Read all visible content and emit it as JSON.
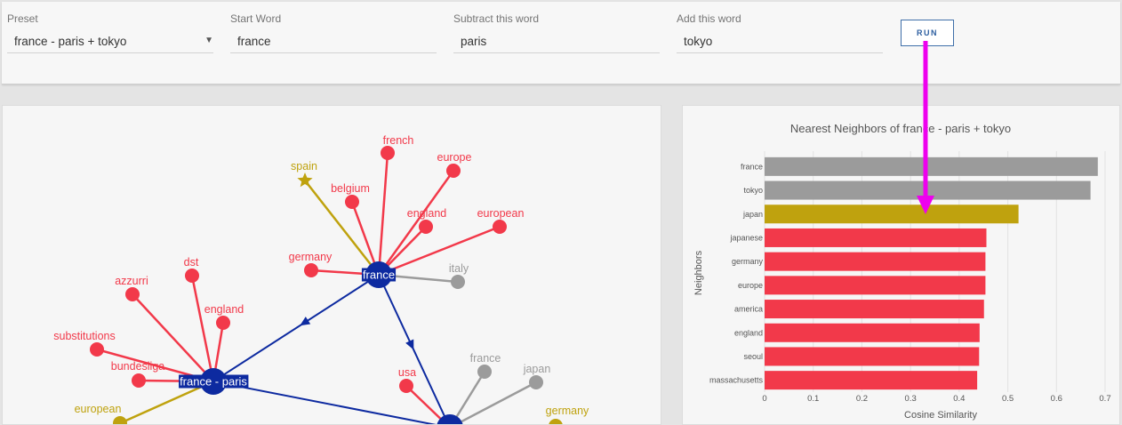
{
  "controls": {
    "preset": {
      "label": "Preset",
      "value": "france - paris + tokyo"
    },
    "start_word": {
      "label": "Start Word",
      "value": "france"
    },
    "subtract_word": {
      "label": "Subtract this word",
      "value": "paris"
    },
    "add_word": {
      "label": "Add this word",
      "value": "tokyo"
    },
    "run_label": "RUN"
  },
  "colors": {
    "red": "#f2394a",
    "gray": "#9b9b9b",
    "gold": "#bfa20e",
    "blue": "#0d2aa0",
    "magenta": "#ee00ee"
  },
  "graph": {
    "hubs": [
      {
        "id": "france",
        "label": "france",
        "color": "blue"
      },
      {
        "id": "fp",
        "label": "france - paris",
        "color": "blue"
      },
      {
        "id": "tokyo",
        "label": "",
        "color": "blue"
      }
    ],
    "nodes": [
      {
        "label": "french",
        "color": "red",
        "hub": "france"
      },
      {
        "label": "europe",
        "color": "red",
        "hub": "france"
      },
      {
        "label": "spain",
        "color": "gold",
        "hub": "france",
        "shape": "star"
      },
      {
        "label": "belgium",
        "color": "red",
        "hub": "france"
      },
      {
        "label": "england",
        "color": "red",
        "hub": "france"
      },
      {
        "label": "european",
        "color": "red",
        "hub": "france"
      },
      {
        "label": "germany",
        "color": "red",
        "hub": "france"
      },
      {
        "label": "italy",
        "color": "gray",
        "hub": "france"
      },
      {
        "label": "dst",
        "color": "red",
        "hub": "fp"
      },
      {
        "label": "azzurri",
        "color": "red",
        "hub": "fp"
      },
      {
        "label": "england",
        "color": "red",
        "hub": "fp"
      },
      {
        "label": "substitutions",
        "color": "red",
        "hub": "fp"
      },
      {
        "label": "bundesliga",
        "color": "red",
        "hub": "fp"
      },
      {
        "label": "european",
        "color": "gold",
        "hub": "fp"
      },
      {
        "label": "usa",
        "color": "red",
        "hub": "tokyo"
      },
      {
        "label": "france",
        "color": "gray",
        "hub": "tokyo"
      },
      {
        "label": "japan",
        "color": "gray",
        "hub": "tokyo"
      },
      {
        "label": "germany",
        "color": "gold",
        "hub": "tokyo"
      }
    ]
  },
  "chart_data": {
    "type": "bar",
    "orientation": "horizontal",
    "title": "Nearest Neighbors of france - paris + tokyo",
    "xlabel": "Cosine Similarity",
    "ylabel": "Neighbors",
    "xlim": [
      0,
      0.7
    ],
    "xticks": [
      "0",
      "0.1",
      "0.2",
      "0.3",
      "0.4",
      "0.5",
      "0.6",
      "0.7"
    ],
    "categories": [
      "france",
      "tokyo",
      "japan",
      "japanese",
      "germany",
      "europe",
      "america",
      "england",
      "seoul",
      "massachusetts"
    ],
    "values": [
      0.685,
      0.67,
      0.522,
      0.456,
      0.454,
      0.454,
      0.451,
      0.442,
      0.441,
      0.437
    ],
    "bar_colors": [
      "gray",
      "gray",
      "gold",
      "red",
      "red",
      "red",
      "red",
      "red",
      "red",
      "red"
    ]
  }
}
